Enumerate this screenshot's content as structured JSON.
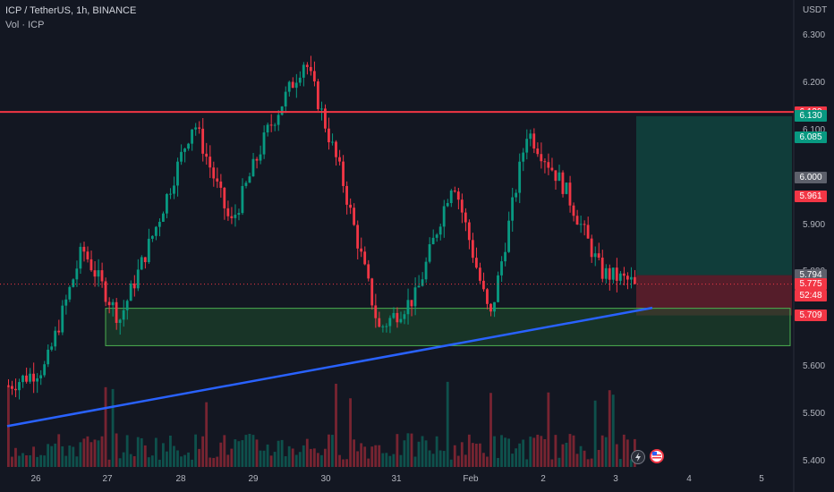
{
  "header": {
    "symbol": "ICP / TetherUS, 1h, BINANCE",
    "volume_label": "Vol · ICP"
  },
  "axis": {
    "currency": "USDT",
    "y_ticks": [
      "6.300",
      "6.200",
      "6.100",
      "6.000",
      "5.900",
      "5.800",
      "5.700",
      "5.600",
      "5.500",
      "5.400"
    ],
    "y_tick_values": [
      6.3,
      6.2,
      6.1,
      6.0,
      5.9,
      5.8,
      5.7,
      5.6,
      5.5,
      5.4
    ],
    "x_ticks": [
      "26",
      "27",
      "28",
      "29",
      "30",
      "31",
      "Feb",
      "2",
      "3",
      "4",
      "5"
    ]
  },
  "price_tags": [
    {
      "label": "6.139",
      "value": 6.139,
      "color": "#f23645"
    },
    {
      "label": "6.130",
      "value": 6.13,
      "color": "#089981"
    },
    {
      "label": "6.085",
      "value": 6.085,
      "color": "#089981"
    },
    {
      "label": "6.000",
      "value": 6.0,
      "color": "#5d606b"
    },
    {
      "label": "5.961",
      "value": 5.961,
      "color": "#f23645"
    },
    {
      "label": "5.794",
      "value": 5.794,
      "color": "#5d606b"
    },
    {
      "label": "5.775",
      "value": 5.775,
      "color": "#f23645"
    },
    {
      "label": "52:48",
      "value": 5.751,
      "color": "#f23645"
    },
    {
      "label": "5.709",
      "value": 5.709,
      "color": "#f23645"
    }
  ],
  "drawings": {
    "resistance": 6.139,
    "support_zone": [
      5.645,
      5.724
    ],
    "trendline": {
      "from": [
        "Jan 25 22:00",
        5.475
      ],
      "to": [
        "Feb 3 10:00",
        5.723
      ]
    },
    "long_position": {
      "entry": 5.794,
      "target": 6.13,
      "stop": 5.709
    }
  },
  "chart_data": {
    "type": "candlestick",
    "symbol": "ICP/USDT",
    "interval": "1h",
    "exchange": "BINANCE",
    "close_last": 5.775,
    "ohlc_sampled": [
      {
        "t": "Jan 26",
        "o": 5.56,
        "h": 5.62,
        "l": 5.48,
        "c": 5.6
      },
      {
        "t": "Jan 26",
        "o": 5.6,
        "h": 5.88,
        "l": 5.59,
        "c": 5.85
      },
      {
        "t": "Jan 27",
        "o": 5.85,
        "h": 5.86,
        "l": 5.61,
        "c": 5.7
      },
      {
        "t": "Jan 27",
        "o": 5.7,
        "h": 5.93,
        "l": 5.68,
        "c": 5.9
      },
      {
        "t": "Jan 28",
        "o": 5.9,
        "h": 6.15,
        "l": 5.89,
        "c": 6.12
      },
      {
        "t": "Jan 28",
        "o": 6.12,
        "h": 6.13,
        "l": 5.86,
        "c": 5.9
      },
      {
        "t": "Jan 29",
        "o": 5.9,
        "h": 6.14,
        "l": 5.89,
        "c": 6.1
      },
      {
        "t": "Jan 30",
        "o": 6.1,
        "h": 6.27,
        "l": 6.09,
        "c": 6.25
      },
      {
        "t": "Jan 30",
        "o": 6.25,
        "h": 6.26,
        "l": 5.96,
        "c": 6.0
      },
      {
        "t": "Jan 31",
        "o": 6.0,
        "h": 6.01,
        "l": 5.63,
        "c": 5.68
      },
      {
        "t": "Jan 31",
        "o": 5.68,
        "h": 5.78,
        "l": 5.66,
        "c": 5.75
      },
      {
        "t": "Feb 1",
        "o": 5.75,
        "h": 6.03,
        "l": 5.74,
        "c": 6.0
      },
      {
        "t": "Feb 1",
        "o": 6.0,
        "h": 6.01,
        "l": 5.67,
        "c": 5.7
      },
      {
        "t": "Feb 2",
        "o": 5.7,
        "h": 6.18,
        "l": 5.69,
        "c": 6.1
      },
      {
        "t": "Feb 2",
        "o": 6.1,
        "h": 6.12,
        "l": 5.94,
        "c": 5.98
      },
      {
        "t": "Feb 3",
        "o": 5.98,
        "h": 6.12,
        "l": 5.76,
        "c": 5.8
      },
      {
        "t": "Feb 3",
        "o": 5.8,
        "h": 5.85,
        "l": 5.76,
        "c": 5.775
      }
    ]
  },
  "colors": {
    "bg": "#131722",
    "up": "#089981",
    "down": "#f23645",
    "resistance": "#f23645",
    "trendline": "#2962ff",
    "zone_fill": "#1e4d2b",
    "zone_border": "#4caf50"
  }
}
